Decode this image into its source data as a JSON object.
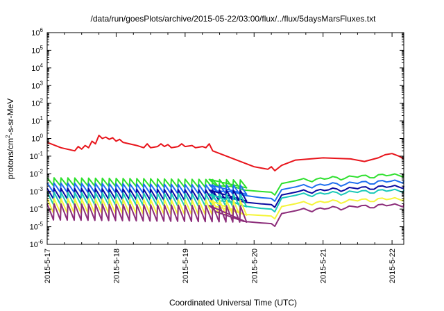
{
  "chart_data": {
    "type": "line",
    "title": "/data/run/goesPlots/archive/2015-05-22/03:00/flux/../flux/5daysMarsFluxes.txt",
    "xlabel": "Coordinated Universal Time (UTC)",
    "ylabel_parts": [
      "protons/cm",
      "2",
      "-s-sr-MeV"
    ],
    "y_scale": "log",
    "ylim": [
      1e-06,
      1000000.0
    ],
    "xlim": [
      0,
      5.17
    ],
    "x_unit": "days since 2015-5-17 00:00 UTC",
    "y_ticks": [
      {
        "base": "10",
        "exp": "6"
      },
      {
        "base": "10",
        "exp": "5"
      },
      {
        "base": "10",
        "exp": "4"
      },
      {
        "base": "10",
        "exp": "3"
      },
      {
        "base": "10",
        "exp": "2"
      },
      {
        "base": "10",
        "exp": "1"
      },
      {
        "base": "10",
        "exp": "0"
      },
      {
        "base": "10",
        "exp": "-1"
      },
      {
        "base": "10",
        "exp": "-2"
      },
      {
        "base": "10",
        "exp": "-3"
      },
      {
        "base": "10",
        "exp": "-4"
      },
      {
        "base": "10",
        "exp": "-5"
      },
      {
        "base": "10",
        "exp": "-6"
      }
    ],
    "x_ticks": [
      {
        "value": 0,
        "label": "2015-5-17"
      },
      {
        "value": 1,
        "label": "2015-5-18"
      },
      {
        "value": 2,
        "label": "2015-5-19"
      },
      {
        "value": 3,
        "label": "2015-5-20"
      },
      {
        "value": 4,
        "label": "2015-5-21"
      },
      {
        "value": 5,
        "label": "2015-5-22"
      }
    ],
    "grid": false,
    "series": [
      {
        "color": "#e8141b",
        "mode": "red",
        "points": [
          [
            0,
            0.6
          ],
          [
            0.2,
            0.3
          ],
          [
            0.4,
            0.2
          ],
          [
            0.45,
            0.35
          ],
          [
            0.5,
            0.25
          ],
          [
            0.55,
            0.4
          ],
          [
            0.6,
            0.3
          ],
          [
            0.65,
            0.7
          ],
          [
            0.7,
            0.5
          ],
          [
            0.75,
            1.5
          ],
          [
            0.8,
            1.0
          ],
          [
            0.85,
            1.2
          ],
          [
            0.9,
            0.9
          ],
          [
            0.95,
            1.1
          ],
          [
            1.0,
            0.7
          ],
          [
            1.05,
            0.9
          ],
          [
            1.1,
            0.6
          ],
          [
            1.3,
            0.4
          ],
          [
            1.4,
            0.3
          ],
          [
            1.45,
            0.5
          ],
          [
            1.5,
            0.3
          ],
          [
            1.6,
            0.35
          ],
          [
            1.65,
            0.5
          ],
          [
            1.7,
            0.35
          ],
          [
            1.75,
            0.45
          ],
          [
            1.8,
            0.3
          ],
          [
            1.9,
            0.35
          ],
          [
            1.95,
            0.5
          ],
          [
            2.0,
            0.35
          ],
          [
            2.1,
            0.4
          ],
          [
            2.15,
            0.3
          ],
          [
            2.25,
            0.35
          ],
          [
            2.3,
            0.3
          ],
          [
            2.35,
            0.5
          ],
          [
            2.4,
            0.2
          ],
          [
            2.6,
            0.1
          ],
          [
            3.0,
            0.025
          ],
          [
            3.2,
            0.018
          ],
          [
            3.25,
            0.025
          ],
          [
            3.3,
            0.015
          ],
          [
            3.4,
            0.03
          ],
          [
            3.6,
            0.06
          ],
          [
            4.0,
            0.08
          ],
          [
            4.4,
            0.07
          ],
          [
            4.6,
            0.05
          ],
          [
            4.8,
            0.08
          ],
          [
            4.9,
            0.12
          ],
          [
            5.0,
            0.14
          ],
          [
            5.1,
            0.1
          ],
          [
            5.17,
            0.07
          ]
        ]
      },
      {
        "color": "#2ee02e",
        "mode": "saw",
        "base": 0.006,
        "lowFactor": 0.35,
        "quietEnd": 2.85,
        "quietLevel": 0.0012,
        "dipAt": 3.3,
        "dipLevel": 0.0009,
        "recoverLevel": 0.004,
        "endLevel": 0.009
      },
      {
        "color": "#1e6ef0",
        "mode": "saw",
        "base": 0.003,
        "lowFactor": 0.3,
        "quietEnd": 2.85,
        "quietLevel": 0.0006,
        "dipAt": 3.3,
        "dipLevel": 0.0004,
        "recoverLevel": 0.0018,
        "endLevel": 0.004
      },
      {
        "color": "#0a0aa0",
        "mode": "saw",
        "base": 0.0015,
        "lowFactor": 0.25,
        "quietEnd": 2.85,
        "quietLevel": 0.00025,
        "dipAt": 3.3,
        "dipLevel": 0.00018,
        "recoverLevel": 0.0009,
        "endLevel": 0.002
      },
      {
        "color": "#18c8b8",
        "mode": "saw",
        "base": 0.0009,
        "lowFactor": 0.2,
        "quietEnd": 2.85,
        "quietLevel": 0.00015,
        "dipAt": 3.3,
        "dipLevel": 0.0001,
        "recoverLevel": 0.0006,
        "endLevel": 0.0012
      },
      {
        "color": "#f5f53a",
        "mode": "saw",
        "base": 0.0004,
        "lowFactor": 0.15,
        "quietEnd": 2.85,
        "quietLevel": 5e-05,
        "dipAt": 3.3,
        "dipLevel": 4e-05,
        "recoverLevel": 0.0002,
        "endLevel": 0.0004
      },
      {
        "color": "#8c2d7a",
        "mode": "saw",
        "base": 0.0002,
        "lowFactor": 0.12,
        "quietEnd": 2.85,
        "quietLevel": 2e-05,
        "dipAt": 3.3,
        "dipLevel": 1.5e-05,
        "recoverLevel": 8e-05,
        "endLevel": 0.00018
      }
    ]
  }
}
